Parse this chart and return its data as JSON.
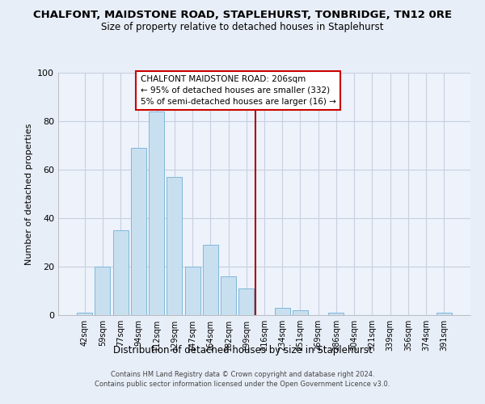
{
  "title": "CHALFONT, MAIDSTONE ROAD, STAPLEHURST, TONBRIDGE, TN12 0RE",
  "subtitle": "Size of property relative to detached houses in Staplehurst",
  "xlabel": "Distribution of detached houses by size in Staplehurst",
  "ylabel": "Number of detached properties",
  "bar_labels": [
    "42sqm",
    "59sqm",
    "77sqm",
    "94sqm",
    "112sqm",
    "129sqm",
    "147sqm",
    "164sqm",
    "182sqm",
    "199sqm",
    "216sqm",
    "234sqm",
    "251sqm",
    "269sqm",
    "286sqm",
    "304sqm",
    "321sqm",
    "339sqm",
    "356sqm",
    "374sqm",
    "391sqm"
  ],
  "bar_values": [
    1,
    20,
    35,
    69,
    84,
    57,
    20,
    29,
    16,
    11,
    0,
    3,
    2,
    0,
    1,
    0,
    0,
    0,
    0,
    0,
    1
  ],
  "bar_color": "#c8dff0",
  "bar_edge_color": "#7fb8d8",
  "vline_x": 10.0,
  "vline_color": "#aa0000",
  "annotation_title": "CHALFONT MAIDSTONE ROAD: 206sqm",
  "annotation_line1": "← 95% of detached houses are smaller (332)",
  "annotation_line2": "5% of semi-detached houses are larger (16) →",
  "annotation_box_color": "#cc0000",
  "ylim": [
    0,
    100
  ],
  "yticks": [
    0,
    20,
    40,
    60,
    80,
    100
  ],
  "footer_line1": "Contains HM Land Registry data © Crown copyright and database right 2024.",
  "footer_line2": "Contains public sector information licensed under the Open Government Licence v3.0.",
  "outer_bg_color": "#e8eef8",
  "plot_bg_color": "#edf2fb",
  "grid_color": "#c8d0e0",
  "title_fontsize": 9.5,
  "subtitle_fontsize": 8.5
}
